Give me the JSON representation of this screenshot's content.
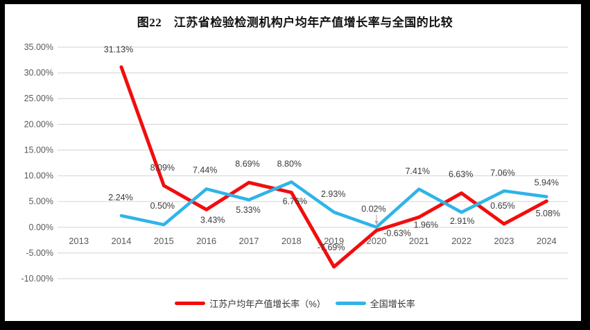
{
  "page": {
    "title": "图22　江苏省检验检测机构户均年产值增长率与全国的比较"
  },
  "chart_data": {
    "type": "line",
    "title": "图22　江苏省检验检测机构户均年产值增长率与全国的比较",
    "categories": [
      "2013",
      "2014",
      "2015",
      "2016",
      "2017",
      "2018",
      "2019",
      "2020",
      "2021",
      "2022",
      "2023",
      "2024"
    ],
    "series": [
      {
        "name": "江苏户均年产值增长率（%）",
        "color": "#F20D0D",
        "values": [
          null,
          31.13,
          8.09,
          3.43,
          8.69,
          6.76,
          -7.69,
          -0.63,
          1.96,
          6.63,
          0.65,
          5.08
        ]
      },
      {
        "name": "全国增长率",
        "color": "#2FB4E7",
        "values": [
          null,
          2.24,
          0.5,
          7.44,
          5.33,
          8.8,
          2.93,
          0.02,
          7.41,
          2.91,
          7.06,
          5.94
        ]
      }
    ],
    "y_ticks": [
      {
        "label": "35.00%",
        "value": 35
      },
      {
        "label": "30.00%",
        "value": 30
      },
      {
        "label": "25.00%",
        "value": 25
      },
      {
        "label": "20.00%",
        "value": 20
      },
      {
        "label": "15.00%",
        "value": 15
      },
      {
        "label": "10.00%",
        "value": 10
      },
      {
        "label": "5.00%",
        "value": 5
      },
      {
        "label": "0.00%",
        "value": 0
      },
      {
        "label": "-5.00%",
        "value": -5
      },
      {
        "label": "-10.00%",
        "value": -10
      }
    ],
    "ylim": [
      -10,
      35
    ],
    "grid": true,
    "legend_position": "bottom",
    "annotation": {
      "note": "leader-arrow from 0.02% label to national 2020 point"
    }
  },
  "colors": {
    "grid_line": "#D9D9D9",
    "axis_text": "#595959",
    "data_label": "#3A3A3A",
    "leader_line": "#A6A6A6",
    "page_background": "#FFFFFF",
    "scan_border": "#000000"
  },
  "legend": {
    "items": [
      {
        "label": "江苏户均年产值增长率（%）"
      },
      {
        "label": "全国增长率"
      }
    ]
  }
}
